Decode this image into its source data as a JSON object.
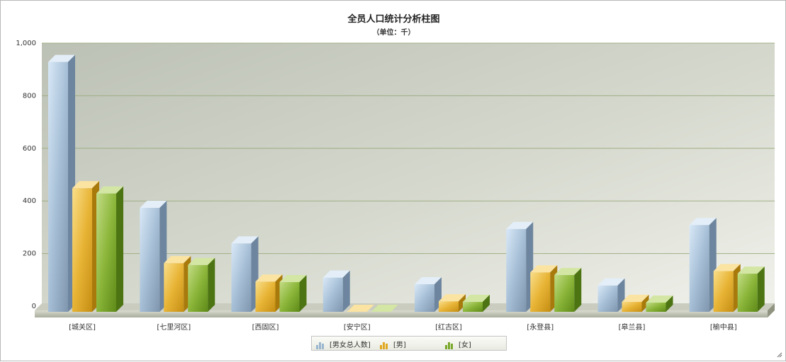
{
  "header": {
    "title": "全员人口统计分析柱图",
    "subtitle": "（单位：千）"
  },
  "colors": {
    "total": "#9bb6cf",
    "male": "#e0a820",
    "female": "#7aa82a"
  },
  "chart_data": {
    "type": "bar",
    "title": "全员人口统计分析柱图",
    "subtitle": "（单位：千）",
    "categories": [
      "[城关区]",
      "[七里河区]",
      "[西固区]",
      "[安宁区]",
      "[红古区]",
      "[永登县]",
      "[皋兰县]",
      "[榆中县]"
    ],
    "series": [
      {
        "name": "[男女总人数]",
        "values": [
          950,
          395,
          260,
          130,
          105,
          315,
          100,
          330
        ]
      },
      {
        "name": "[男]",
        "values": [
          470,
          185,
          115,
          0,
          40,
          150,
          38,
          155
        ]
      },
      {
        "name": "[女]",
        "values": [
          450,
          178,
          113,
          0,
          38,
          140,
          35,
          145
        ]
      }
    ],
    "y_ticks": [
      "0",
      "200",
      "400",
      "600",
      "800",
      "1,000"
    ],
    "ylim": [
      0,
      1000
    ],
    "grid": true,
    "legend_position": "bottom"
  }
}
